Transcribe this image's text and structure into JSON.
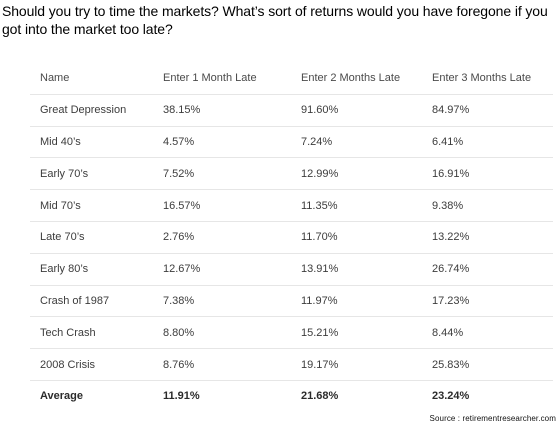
{
  "question": "Should you try to time the markets? What’s sort of returns would you have foregone if you got into the market too late?",
  "table": {
    "headers": [
      "Name",
      "Enter 1 Month Late",
      "Enter 2 Months Late",
      "Enter 3 Months Late"
    ],
    "rows": [
      [
        "Great Depression",
        "38.15%",
        "91.60%",
        "84.97%"
      ],
      [
        "Mid 40’s",
        "4.57%",
        "7.24%",
        "6.41%"
      ],
      [
        "Early 70’s",
        "7.52%",
        "12.99%",
        "16.91%"
      ],
      [
        "Mid 70’s",
        "16.57%",
        "11.35%",
        "9.38%"
      ],
      [
        "Late 70’s",
        "2.76%",
        "11.70%",
        "13.22%"
      ],
      [
        "Early 80’s",
        "12.67%",
        "13.91%",
        "26.74%"
      ],
      [
        "Crash of 1987",
        "7.38%",
        "11.97%",
        "17.23%"
      ],
      [
        "Tech Crash",
        "8.80%",
        "15.21%",
        "8.44%"
      ],
      [
        "2008 Crisis",
        "8.76%",
        "19.17%",
        "25.83%"
      ]
    ],
    "average": [
      "Average",
      "11.91%",
      "21.68%",
      "23.24%"
    ]
  },
  "source": "Source : retirementresearcher.com"
}
